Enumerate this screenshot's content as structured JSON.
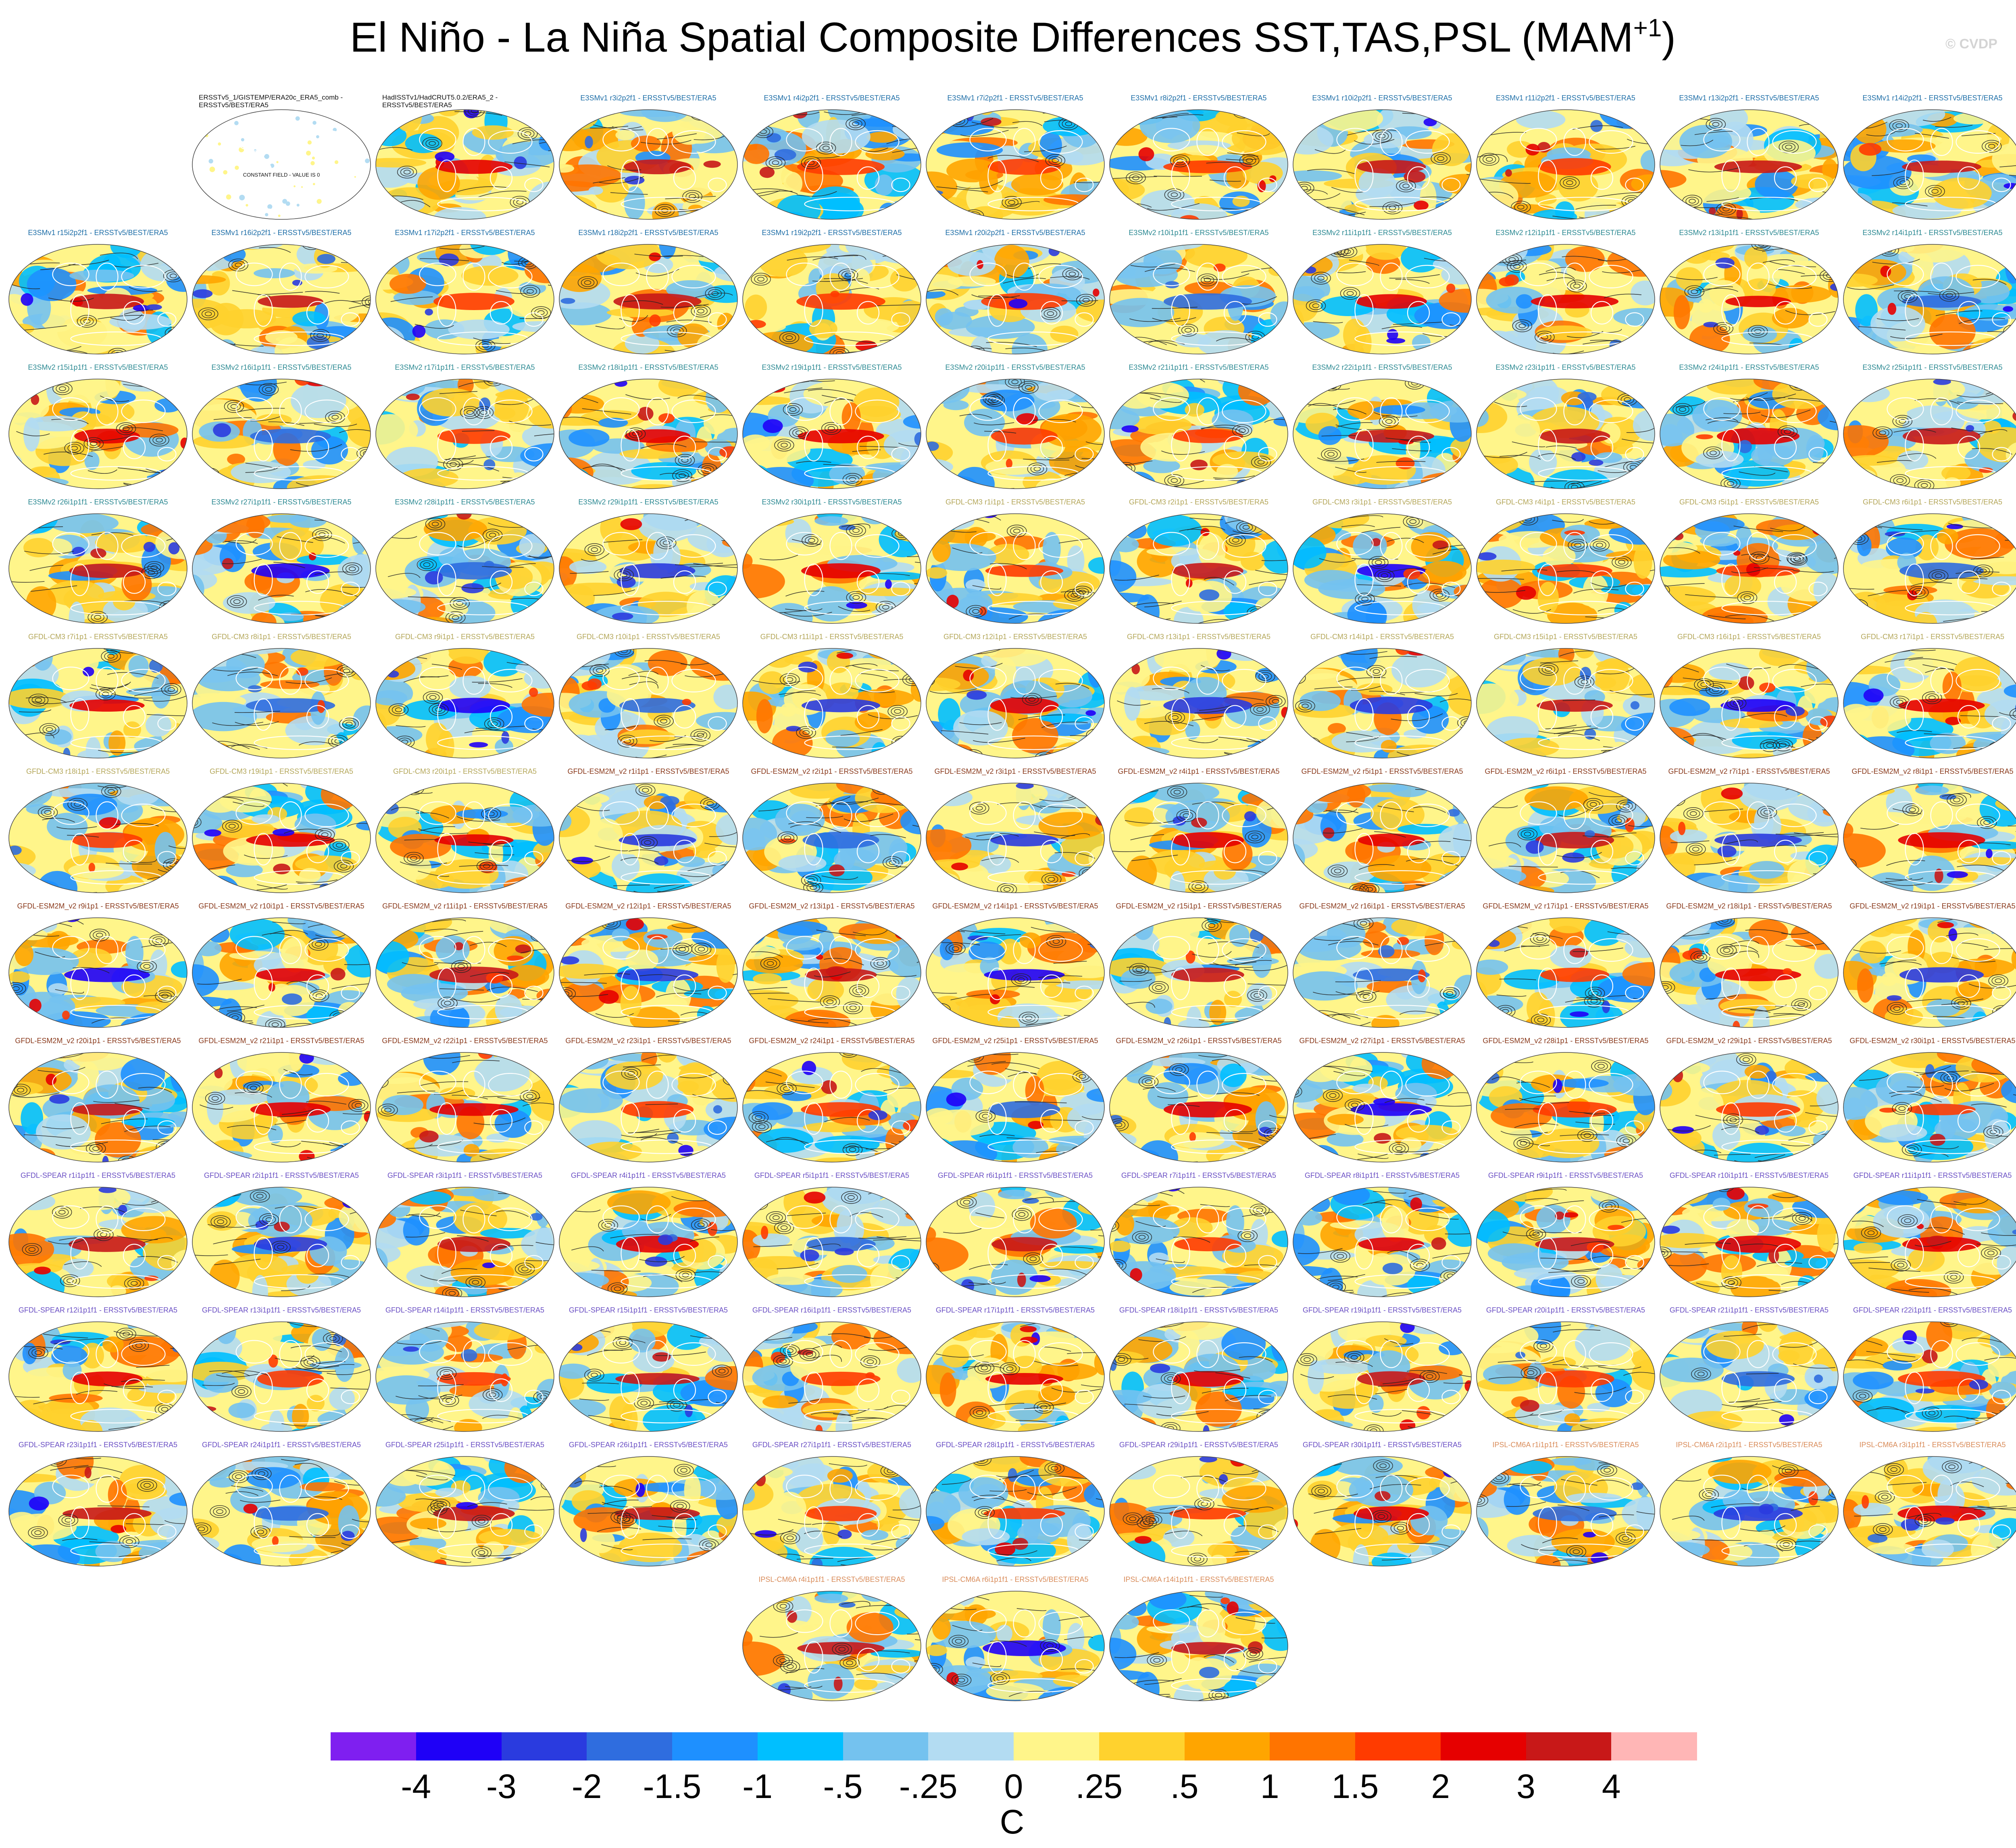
{
  "title": {
    "main": "El Niño - La Niña Spatial Composite Differences SST,TAS,PSL (MAM",
    "sup": "+1",
    "close": ")"
  },
  "watermark": "© CVDP",
  "observations": [
    {
      "label": "ERSSTv5_1/GISTEMP/ERA20c_ERA5_comb - ERSSTv5/BEST/ERA5",
      "note": "CONSTANT FIELD - VALUE IS 0",
      "style": "constant"
    },
    {
      "label": "HadISSTv1/HadCRUT5.0.2/ERA5_2 - ERSSTv5/BEST/ERA5",
      "style": "field"
    }
  ],
  "groups": [
    {
      "name": "E3SMv1",
      "color": "#1f6fa8",
      "members": [
        "E3SMv1 r3i2p2f1 - ERSSTv5/BEST/ERA5",
        "E3SMv1 r4i2p2f1 - ERSSTv5/BEST/ERA5",
        "E3SMv1 r7i2p2f1 - ERSSTv5/BEST/ERA5",
        "E3SMv1 r8i2p2f1 - ERSSTv5/BEST/ERA5",
        "E3SMv1 r10i2p2f1 - ERSSTv5/BEST/ERA5",
        "E3SMv1 r11i2p2f1 - ERSSTv5/BEST/ERA5",
        "E3SMv1 r13i2p2f1 - ERSSTv5/BEST/ERA5",
        "E3SMv1 r14i2p2f1 - ERSSTv5/BEST/ERA5",
        "E3SMv1 r15i2p2f1 - ERSSTv5/BEST/ERA5",
        "E3SMv1 r16i2p2f1 - ERSSTv5/BEST/ERA5",
        "E3SMv1 r17i2p2f1 - ERSSTv5/BEST/ERA5",
        "E3SMv1 r18i2p2f1 - ERSSTv5/BEST/ERA5",
        "E3SMv1 r19i2p2f1 - ERSSTv5/BEST/ERA5",
        "E3SMv1 r20i2p2f1 - ERSSTv5/BEST/ERA5"
      ]
    },
    {
      "name": "E3SMv2",
      "color": "#2d8a93",
      "members": [
        "E3SMv2 r10i1p1f1 - ERSSTv5/BEST/ERA5",
        "E3SMv2 r11i1p1f1 - ERSSTv5/BEST/ERA5",
        "E3SMv2 r12i1p1f1 - ERSSTv5/BEST/ERA5",
        "E3SMv2 r13i1p1f1 - ERSSTv5/BEST/ERA5",
        "E3SMv2 r14i1p1f1 - ERSSTv5/BEST/ERA5",
        "E3SMv2 r15i1p1f1 - ERSSTv5/BEST/ERA5",
        "E3SMv2 r16i1p1f1 - ERSSTv5/BEST/ERA5",
        "E3SMv2 r17i1p1f1 - ERSSTv5/BEST/ERA5",
        "E3SMv2 r18i1p1f1 - ERSSTv5/BEST/ERA5",
        "E3SMv2 r19i1p1f1 - ERSSTv5/BEST/ERA5",
        "E3SMv2 r20i1p1f1 - ERSSTv5/BEST/ERA5",
        "E3SMv2 r21i1p1f1 - ERSSTv5/BEST/ERA5",
        "E3SMv2 r22i1p1f1 - ERSSTv5/BEST/ERA5",
        "E3SMv2 r23i1p1f1 - ERSSTv5/BEST/ERA5",
        "E3SMv2 r24i1p1f1 - ERSSTv5/BEST/ERA5",
        "E3SMv2 r25i1p1f1 - ERSSTv5/BEST/ERA5",
        "E3SMv2 r26i1p1f1 - ERSSTv5/BEST/ERA5",
        "E3SMv2 r27i1p1f1 - ERSSTv5/BEST/ERA5",
        "E3SMv2 r28i1p1f1 - ERSSTv5/BEST/ERA5",
        "E3SMv2 r29i1p1f1 - ERSSTv5/BEST/ERA5",
        "E3SMv2 r30i1p1f1 - ERSSTv5/BEST/ERA5"
      ]
    },
    {
      "name": "GFDL-CM3",
      "color": "#b4a75a",
      "members": [
        "GFDL-CM3 r1i1p1 - ERSSTv5/BEST/ERA5",
        "GFDL-CM3 r2i1p1 - ERSSTv5/BEST/ERA5",
        "GFDL-CM3 r3i1p1 - ERSSTv5/BEST/ERA5",
        "GFDL-CM3 r4i1p1 - ERSSTv5/BEST/ERA5",
        "GFDL-CM3 r5i1p1 - ERSSTv5/BEST/ERA5",
        "GFDL-CM3 r6i1p1 - ERSSTv5/BEST/ERA5",
        "GFDL-CM3 r7i1p1 - ERSSTv5/BEST/ERA5",
        "GFDL-CM3 r8i1p1 - ERSSTv5/BEST/ERA5",
        "GFDL-CM3 r9i1p1 - ERSSTv5/BEST/ERA5",
        "GFDL-CM3 r10i1p1 - ERSSTv5/BEST/ERA5",
        "GFDL-CM3 r11i1p1 - ERSSTv5/BEST/ERA5",
        "GFDL-CM3 r12i1p1 - ERSSTv5/BEST/ERA5",
        "GFDL-CM3 r13i1p1 - ERSSTv5/BEST/ERA5",
        "GFDL-CM3 r14i1p1 - ERSSTv5/BEST/ERA5",
        "GFDL-CM3 r15i1p1 - ERSSTv5/BEST/ERA5",
        "GFDL-CM3 r16i1p1 - ERSSTv5/BEST/ERA5",
        "GFDL-CM3 r17i1p1 - ERSSTv5/BEST/ERA5",
        "GFDL-CM3 r18i1p1 - ERSSTv5/BEST/ERA5",
        "GFDL-CM3 r19i1p1 - ERSSTv5/BEST/ERA5",
        "GFDL-CM3 r20i1p1 - ERSSTv5/BEST/ERA5"
      ]
    },
    {
      "name": "GFDL-ESM2M_v2",
      "color": "#8a3a1c",
      "members": [
        "GFDL-ESM2M_v2 r1i1p1 - ERSSTv5/BEST/ERA5",
        "GFDL-ESM2M_v2 r2i1p1 - ERSSTv5/BEST/ERA5",
        "GFDL-ESM2M_v2 r3i1p1 - ERSSTv5/BEST/ERA5",
        "GFDL-ESM2M_v2 r4i1p1 - ERSSTv5/BEST/ERA5",
        "GFDL-ESM2M_v2 r5i1p1 - ERSSTv5/BEST/ERA5",
        "GFDL-ESM2M_v2 r6i1p1 - ERSSTv5/BEST/ERA5",
        "GFDL-ESM2M_v2 r7i1p1 - ERSSTv5/BEST/ERA5",
        "GFDL-ESM2M_v2 r8i1p1 - ERSSTv5/BEST/ERA5",
        "GFDL-ESM2M_v2 r9i1p1 - ERSSTv5/BEST/ERA5",
        "GFDL-ESM2M_v2 r10i1p1 - ERSSTv5/BEST/ERA5",
        "GFDL-ESM2M_v2 r11i1p1 - ERSSTv5/BEST/ERA5",
        "GFDL-ESM2M_v2 r12i1p1 - ERSSTv5/BEST/ERA5",
        "GFDL-ESM2M_v2 r13i1p1 - ERSSTv5/BEST/ERA5",
        "GFDL-ESM2M_v2 r14i1p1 - ERSSTv5/BEST/ERA5",
        "GFDL-ESM2M_v2 r15i1p1 - ERSSTv5/BEST/ERA5",
        "GFDL-ESM2M_v2 r16i1p1 - ERSSTv5/BEST/ERA5",
        "GFDL-ESM2M_v2 r17i1p1 - ERSSTv5/BEST/ERA5",
        "GFDL-ESM2M_v2 r18i1p1 - ERSSTv5/BEST/ERA5",
        "GFDL-ESM2M_v2 r19i1p1 - ERSSTv5/BEST/ERA5",
        "GFDL-ESM2M_v2 r20i1p1 - ERSSTv5/BEST/ERA5",
        "GFDL-ESM2M_v2 r21i1p1 - ERSSTv5/BEST/ERA5",
        "GFDL-ESM2M_v2 r22i1p1 - ERSSTv5/BEST/ERA5",
        "GFDL-ESM2M_v2 r23i1p1 - ERSSTv5/BEST/ERA5",
        "GFDL-ESM2M_v2 r24i1p1 - ERSSTv5/BEST/ERA5",
        "GFDL-ESM2M_v2 r25i1p1 - ERSSTv5/BEST/ERA5",
        "GFDL-ESM2M_v2 r26i1p1 - ERSSTv5/BEST/ERA5",
        "GFDL-ESM2M_v2 r27i1p1 - ERSSTv5/BEST/ERA5",
        "GFDL-ESM2M_v2 r28i1p1 - ERSSTv5/BEST/ERA5",
        "GFDL-ESM2M_v2 r29i1p1 - ERSSTv5/BEST/ERA5",
        "GFDL-ESM2M_v2 r30i1p1 - ERSSTv5/BEST/ERA5"
      ]
    },
    {
      "name": "GFDL-SPEAR",
      "color": "#6a4fc4",
      "members": [
        "GFDL-SPEAR r1i1p1f1 - ERSSTv5/BEST/ERA5",
        "GFDL-SPEAR r2i1p1f1 - ERSSTv5/BEST/ERA5",
        "GFDL-SPEAR r3i1p1f1 - ERSSTv5/BEST/ERA5",
        "GFDL-SPEAR r4i1p1f1 - ERSSTv5/BEST/ERA5",
        "GFDL-SPEAR r5i1p1f1 - ERSSTv5/BEST/ERA5",
        "GFDL-SPEAR r6i1p1f1 - ERSSTv5/BEST/ERA5",
        "GFDL-SPEAR r7i1p1f1 - ERSSTv5/BEST/ERA5",
        "GFDL-SPEAR r8i1p1f1 - ERSSTv5/BEST/ERA5",
        "GFDL-SPEAR r9i1p1f1 - ERSSTv5/BEST/ERA5",
        "GFDL-SPEAR r10i1p1f1 - ERSSTv5/BEST/ERA5",
        "GFDL-SPEAR r11i1p1f1 - ERSSTv5/BEST/ERA5",
        "GFDL-SPEAR r12i1p1f1 - ERSSTv5/BEST/ERA5",
        "GFDL-SPEAR r13i1p1f1 - ERSSTv5/BEST/ERA5",
        "GFDL-SPEAR r14i1p1f1 - ERSSTv5/BEST/ERA5",
        "GFDL-SPEAR r15i1p1f1 - ERSSTv5/BEST/ERA5",
        "GFDL-SPEAR r16i1p1f1 - ERSSTv5/BEST/ERA5",
        "GFDL-SPEAR r17i1p1f1 - ERSSTv5/BEST/ERA5",
        "GFDL-SPEAR r18i1p1f1 - ERSSTv5/BEST/ERA5",
        "GFDL-SPEAR r19i1p1f1 - ERSSTv5/BEST/ERA5",
        "GFDL-SPEAR r20i1p1f1 - ERSSTv5/BEST/ERA5",
        "GFDL-SPEAR r21i1p1f1 - ERSSTv5/BEST/ERA5",
        "GFDL-SPEAR r22i1p1f1 - ERSSTv5/BEST/ERA5",
        "GFDL-SPEAR r23i1p1f1 - ERSSTv5/BEST/ERA5",
        "GFDL-SPEAR r24i1p1f1 - ERSSTv5/BEST/ERA5",
        "GFDL-SPEAR r25i1p1f1 - ERSSTv5/BEST/ERA5",
        "GFDL-SPEAR r26i1p1f1 - ERSSTv5/BEST/ERA5",
        "GFDL-SPEAR r27i1p1f1 - ERSSTv5/BEST/ERA5",
        "GFDL-SPEAR r28i1p1f1 - ERSSTv5/BEST/ERA5",
        "GFDL-SPEAR r29i1p1f1 - ERSSTv5/BEST/ERA5",
        "GFDL-SPEAR r30i1p1f1 - ERSSTv5/BEST/ERA5"
      ]
    },
    {
      "name": "IPSL-CM6A",
      "color": "#d98c5a",
      "members": [
        "IPSL-CM6A r1i1p1f1 - ERSSTv5/BEST/ERA5",
        "IPSL-CM6A r2i1p1f1 - ERSSTv5/BEST/ERA5",
        "IPSL-CM6A r3i1p1f1 - ERSSTv5/BEST/ERA5",
        "IPSL-CM6A r4i1p1f1 - ERSSTv5/BEST/ERA5",
        "IPSL-CM6A r6i1p1f1 - ERSSTv5/BEST/ERA5",
        "IPSL-CM6A r14i1p1f1 - ERSSTv5/BEST/ERA5"
      ]
    }
  ],
  "colorbar": {
    "colors": [
      "#7f1ff0",
      "#1f00f7",
      "#2a3bdf",
      "#2f6ddf",
      "#1e90ff",
      "#00bfff",
      "#74c2ef",
      "#b3dcf2",
      "#fff58a",
      "#ffd22e",
      "#ffa500",
      "#ff7400",
      "#ff3b00",
      "#e60000",
      "#c81818",
      "#ffb6b6"
    ],
    "labels": [
      "-4",
      "-3",
      "-2",
      "-1.5",
      "-1",
      "-.5",
      "-.25",
      "0",
      ".25",
      ".5",
      "1",
      "1.5",
      "2",
      "3",
      "4"
    ],
    "units": "C"
  }
}
